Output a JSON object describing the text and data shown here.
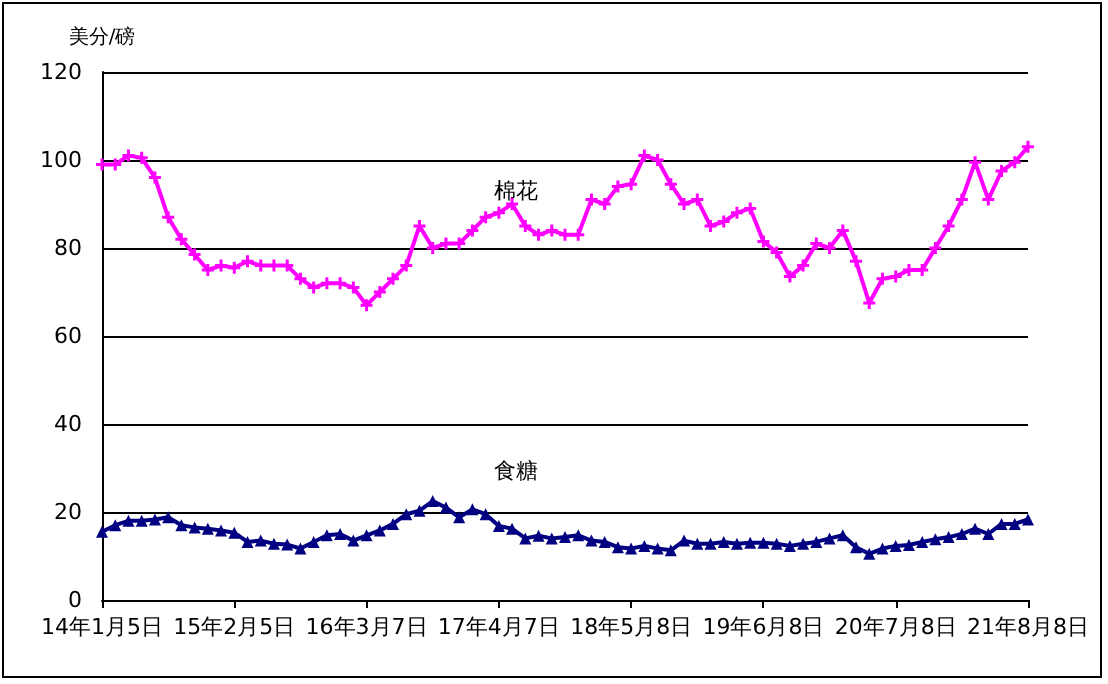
{
  "chart_data": {
    "type": "line",
    "ylabel": "美分/磅",
    "categories": [
      "14年1月5日",
      null,
      null,
      null,
      null,
      null,
      null,
      null,
      null,
      null,
      "15年2月5日",
      null,
      null,
      null,
      null,
      null,
      null,
      null,
      null,
      null,
      "16年3月7日",
      null,
      null,
      null,
      null,
      null,
      null,
      null,
      null,
      null,
      "17年4月7日",
      null,
      null,
      null,
      null,
      null,
      null,
      null,
      null,
      null,
      "18年5月8日",
      null,
      null,
      null,
      null,
      null,
      null,
      null,
      null,
      null,
      "19年6月8日",
      null,
      null,
      null,
      null,
      null,
      null,
      null,
      null,
      null,
      "20年7月8日",
      null,
      null,
      null,
      null,
      null,
      null,
      null,
      null,
      null,
      "21年8月8日"
    ],
    "series": [
      {
        "name": "棉花",
        "color": "#ff00ff",
        "marker": "cross",
        "values": [
          99,
          99,
          101,
          100.5,
          96,
          87,
          82,
          78.5,
          75,
          76,
          75.5,
          77,
          76,
          76,
          76,
          73,
          71,
          72,
          72,
          71,
          67,
          70,
          73,
          76,
          85,
          80,
          81,
          81,
          84,
          87,
          88,
          90,
          85,
          83,
          84,
          83,
          83,
          91,
          90,
          94,
          94.5,
          101,
          100,
          94.5,
          90,
          91,
          85,
          86,
          88,
          89,
          81.5,
          79,
          73.5,
          76,
          81,
          80,
          84,
          77,
          67.5,
          73,
          73.5,
          75,
          75,
          80,
          85,
          91,
          99.5,
          91,
          97.5,
          99.5,
          103
        ]
      },
      {
        "name": "食糖",
        "color": "#000080",
        "marker": "triangle",
        "values": [
          15.5,
          17,
          18,
          18,
          18.3,
          18.8,
          17,
          16.5,
          16.2,
          15.8,
          15.3,
          13.2,
          13.5,
          12.8,
          12.6,
          11.7,
          13.2,
          14.7,
          15,
          13.5,
          14.7,
          15.8,
          17.3,
          19.5,
          20.3,
          22.5,
          21,
          18.8,
          20.6,
          19.5,
          16.8,
          16.2,
          14,
          14.6,
          14,
          14.3,
          14.7,
          13.5,
          13.2,
          12,
          11.7,
          12.3,
          11.7,
          11.3,
          13.5,
          12.8,
          12.8,
          13.2,
          12.8,
          13,
          13,
          12.8,
          12.3,
          12.8,
          13.2,
          14,
          14.7,
          12,
          10.5,
          11.7,
          12.3,
          12.5,
          13.2,
          13.8,
          14.3,
          15,
          16.2,
          15,
          17.3,
          17.3,
          18.3
        ]
      }
    ],
    "ylim": [
      0,
      120
    ],
    "yticks": [
      0,
      20,
      40,
      60,
      80,
      100,
      120
    ],
    "grid": "y",
    "legend": false
  }
}
